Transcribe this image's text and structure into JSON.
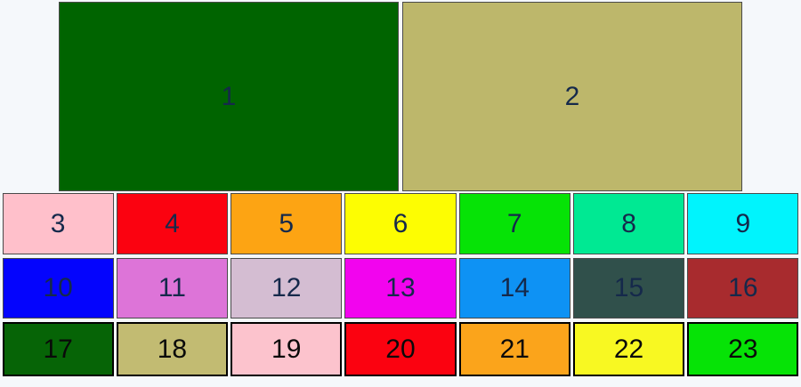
{
  "canvas": {
    "background": "#f5f8fb"
  },
  "rows": [
    {
      "text_color": "#15294b",
      "border_color": "#4a4a4a",
      "cells": [
        {
          "label": "1",
          "color": "#006400",
          "color_name": "dark-green"
        },
        {
          "label": "2",
          "color": "#bdb76b",
          "color_name": "dark-khaki"
        }
      ]
    },
    {
      "text_color": "#15294b",
      "border_color": "#4a4a4a",
      "cells": [
        {
          "label": "3",
          "color": "#ffc0cb",
          "color_name": "pink"
        },
        {
          "label": "4",
          "color": "#fb0210",
          "color_name": "red"
        },
        {
          "label": "5",
          "color": "#fda413",
          "color_name": "orange"
        },
        {
          "label": "6",
          "color": "#fdfd02",
          "color_name": "yellow"
        },
        {
          "label": "7",
          "color": "#06e306",
          "color_name": "green"
        },
        {
          "label": "8",
          "color": "#00e993",
          "color_name": "medium-spring-green"
        },
        {
          "label": "9",
          "color": "#00f4fd",
          "color_name": "cyan"
        }
      ]
    },
    {
      "text_color": "#15294b",
      "border_color": "#4a4a4a",
      "cells": [
        {
          "label": "10",
          "color": "#0404fd",
          "color_name": "blue"
        },
        {
          "label": "11",
          "color": "#dd74d8",
          "color_name": "orchid"
        },
        {
          "label": "12",
          "color": "#d4bdd2",
          "color_name": "thistle"
        },
        {
          "label": "13",
          "color": "#f204ee",
          "color_name": "magenta"
        },
        {
          "label": "14",
          "color": "#0e92f4",
          "color_name": "dodger-blue"
        },
        {
          "label": "15",
          "color": "#30504b",
          "color_name": "dark-slate-gray"
        },
        {
          "label": "16",
          "color": "#a82b2e",
          "color_name": "brown"
        }
      ]
    },
    {
      "text_color": "#0a0a0a",
      "border_color": "#000000",
      "cells": [
        {
          "label": "17",
          "color": "#066406",
          "color_name": "dark-green"
        },
        {
          "label": "18",
          "color": "#c2bb72",
          "color_name": "dark-khaki"
        },
        {
          "label": "19",
          "color": "#fcc3cd",
          "color_name": "pink"
        },
        {
          "label": "20",
          "color": "#fb0210",
          "color_name": "red"
        },
        {
          "label": "21",
          "color": "#fba41b",
          "color_name": "orange"
        },
        {
          "label": "22",
          "color": "#f8f822",
          "color_name": "yellow"
        },
        {
          "label": "23",
          "color": "#06e306",
          "color_name": "green"
        }
      ]
    }
  ]
}
